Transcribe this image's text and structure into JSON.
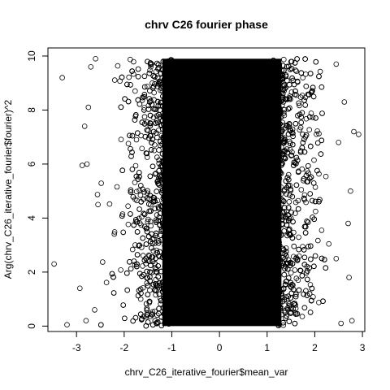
{
  "chart_data": {
    "type": "scatter",
    "title": "chrv C26 fourier phase",
    "xlabel": "chrv_C26_iterative_fourier$mean_var",
    "ylabel": "Arg(chrv_C26_iterative_fourier$fourier)^2",
    "xlim": [
      -3.6,
      3.05
    ],
    "ylim": [
      -0.2,
      10.3
    ],
    "x_ticks": [
      -3,
      -2,
      -1,
      0,
      1,
      2,
      3
    ],
    "x_tick_labels": [
      "-3",
      "-2",
      "-1",
      "0",
      "1",
      "2",
      "3"
    ],
    "y_ticks": [
      0,
      2,
      4,
      6,
      8,
      10
    ],
    "y_tick_labels": [
      "0",
      "2",
      "4",
      "6",
      "8",
      "10"
    ],
    "marker": "open-circle",
    "grid": false,
    "legend": "none",
    "dense_region": {
      "x_range": [
        -1.2,
        1.3
      ],
      "y_range": [
        0,
        9.9
      ],
      "note": "solid band of overlapping points"
    },
    "x_density": {
      "description": "approximate normal-shaped distribution of mean_var, mean ~0.05, sd ~0.75",
      "mean": 0.05,
      "sd": 0.75
    },
    "outlier_points": [
      {
        "x": -3.47,
        "y": 2.3
      },
      {
        "x": -3.3,
        "y": 9.2
      },
      {
        "x": -3.2,
        "y": 0.05
      },
      {
        "x": -2.93,
        "y": 1.4
      },
      {
        "x": -2.88,
        "y": 5.95
      },
      {
        "x": -2.83,
        "y": 7.4
      },
      {
        "x": -2.78,
        "y": 6.0
      },
      {
        "x": -2.8,
        "y": 0.2
      },
      {
        "x": -2.75,
        "y": 8.1
      },
      {
        "x": -2.7,
        "y": 9.6
      },
      {
        "x": -2.6,
        "y": 9.9
      },
      {
        "x": -2.55,
        "y": 4.5
      },
      {
        "x": -2.62,
        "y": 0.6
      },
      {
        "x": 2.45,
        "y": 9.7
      },
      {
        "x": 2.55,
        "y": 0.1
      },
      {
        "x": 2.62,
        "y": 8.3
      },
      {
        "x": 2.7,
        "y": 3.8
      },
      {
        "x": 2.72,
        "y": 1.8
      },
      {
        "x": 2.75,
        "y": 5.0
      },
      {
        "x": 2.78,
        "y": 0.2
      },
      {
        "x": 2.82,
        "y": 7.2
      },
      {
        "x": 2.92,
        "y": 7.1
      },
      {
        "x": 2.5,
        "y": 6.8
      },
      {
        "x": 2.45,
        "y": 2.5
      }
    ]
  }
}
